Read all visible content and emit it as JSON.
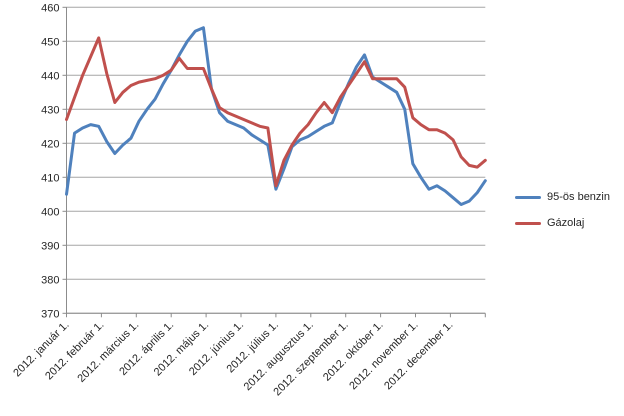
{
  "chart_data": {
    "type": "line",
    "title": "",
    "xlabel": "",
    "ylabel": "",
    "ylim": [
      370,
      460
    ],
    "y_ticks": [
      370,
      380,
      390,
      400,
      410,
      420,
      430,
      440,
      450,
      460
    ],
    "x_tick_labels": [
      "2012. január 1.",
      "2012. február 1.",
      "2012. március 1.",
      "2012. április 1.",
      "2012. május 1.",
      "2012. június 1.",
      "2012. július 1.",
      "2012. augusztus 1.",
      "2012. szeptember 1.",
      "2012. október 1.",
      "2012. november 1.",
      "2012. december 1."
    ],
    "x_unit": "weeks of 2012 (53 points, Jan 1 – Dec 31)",
    "grid": "horizontal",
    "legend_position": "right",
    "colors": {
      "grid": "#A6A6A6",
      "axis": "#8C8C8C",
      "text": "#262626"
    },
    "series": [
      {
        "name": "95-ös benzin",
        "color": "#4F81BD",
        "values": [
          405,
          423,
          424.5,
          425.5,
          425,
          420.5,
          417,
          419.5,
          421.5,
          426.5,
          430,
          433,
          437.5,
          441.5,
          446,
          450,
          453,
          454,
          436,
          429,
          426.5,
          425.5,
          424.5,
          422.5,
          421,
          419.5,
          406.5,
          412.5,
          419,
          421,
          422,
          423.5,
          425,
          426,
          432,
          437.5,
          442.5,
          446,
          439.5,
          438,
          436.5,
          435,
          430,
          414,
          410,
          406.5,
          407.5,
          406,
          404,
          402,
          403,
          405.5,
          409
        ]
      },
      {
        "name": "Gázolaj",
        "color": "#C0504D",
        "values": [
          427,
          433.5,
          440,
          445.5,
          451,
          440.5,
          432,
          435,
          437,
          438,
          438.5,
          439,
          440,
          441.5,
          445,
          442,
          442,
          442,
          436,
          430.5,
          429,
          428,
          427,
          426,
          425,
          424.5,
          407.5,
          415,
          419.5,
          423,
          425.5,
          429,
          432,
          429,
          433.5,
          437,
          440.5,
          444,
          439,
          439,
          439,
          439,
          436.5,
          427.5,
          425.5,
          424,
          424,
          423,
          421,
          416,
          413.5,
          413,
          415
        ]
      }
    ]
  }
}
